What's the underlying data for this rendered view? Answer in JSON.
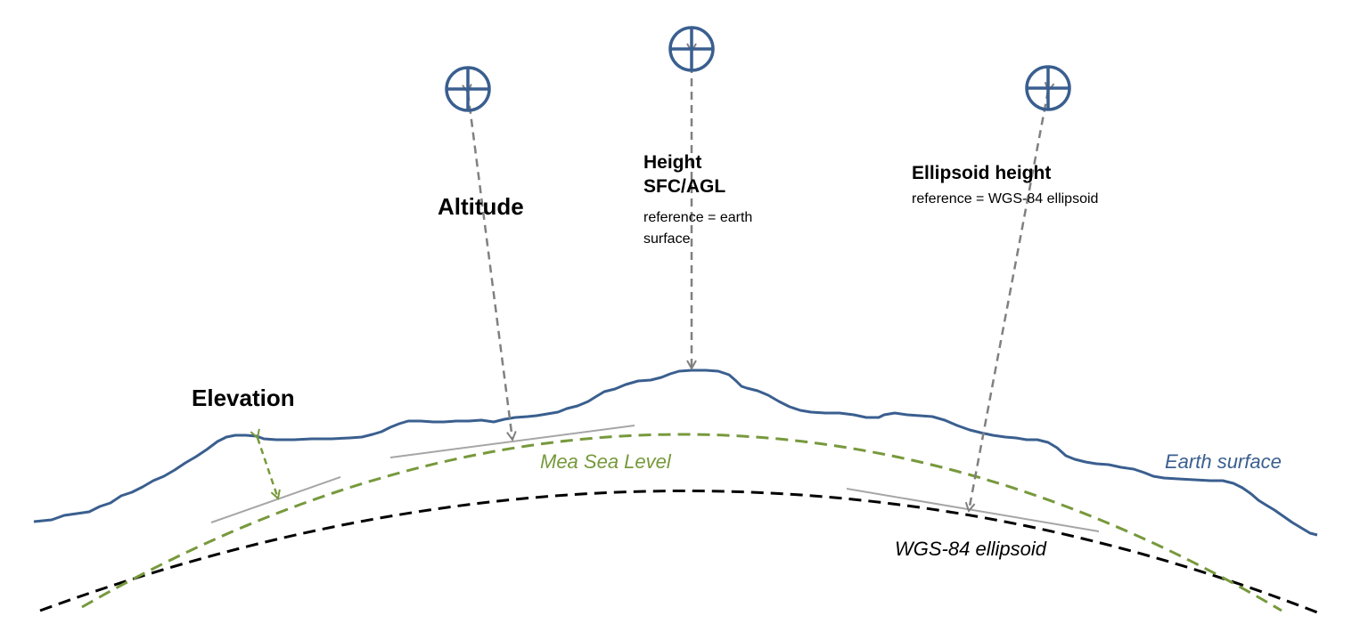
{
  "labels": {
    "altitude": "Altitude",
    "height_title_line1": "Height",
    "height_title_line2": "SFC/AGL",
    "height_ref_line1": "reference  = earth",
    "height_ref_line2": "surface",
    "ellipsoid_title": "Ellipsoid  height",
    "ellipsoid_ref": "reference   = WGS-84  ellipsoid",
    "elevation": "Elevation",
    "msl": "Mea Sea  Level",
    "earth_surface": "Earth surface",
    "wgs84": "WGS-84 ellipsoid"
  },
  "icons": [
    "aircraft-position-icon",
    "aircraft-position-icon",
    "aircraft-position-icon"
  ],
  "colors": {
    "earth_surface": "#3a5f8f",
    "msl": "#77993c",
    "ellipsoid": "#000000",
    "arrow": "#808080",
    "tangent": "#a6a6a6",
    "icon": "#3a5f8f"
  }
}
